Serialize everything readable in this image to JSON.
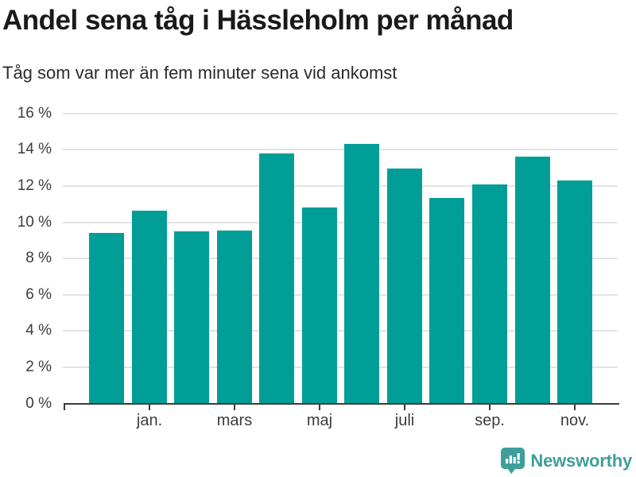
{
  "header": {
    "title": "Andel sena tåg i Hässleholm per månad",
    "subtitle": "Tåg som var mer än fem minuter sena vid ankomst"
  },
  "chart_data": {
    "type": "bar",
    "title": "Andel sena tåg i Hässleholm per månad",
    "subtitle": "Tåg som var mer än fem minuter sena vid ankomst",
    "categories": [
      "",
      "jan.",
      "",
      "mars",
      "",
      "maj",
      "",
      "juli",
      "",
      "sep.",
      "",
      "nov."
    ],
    "values": [
      9.4,
      10.65,
      9.5,
      9.55,
      13.8,
      10.8,
      14.3,
      12.95,
      11.35,
      12.1,
      13.6,
      12.3
    ],
    "unit": "%",
    "xlabel": "",
    "ylabel": "",
    "y_ticks": [
      0,
      2,
      4,
      6,
      8,
      10,
      12,
      14,
      16
    ],
    "y_tick_suffix": " %",
    "ylim": [
      0,
      16
    ],
    "grid": true,
    "legend_position": "none",
    "bar_color": "#009e97",
    "grid_color": "#e3e3e3",
    "axis_color": "#3c3c3c"
  },
  "footer": {
    "brand": "Newsworthy",
    "logo_icon": "newsworthy-bubble-chart-icon",
    "brand_color": "#3f9e99"
  }
}
